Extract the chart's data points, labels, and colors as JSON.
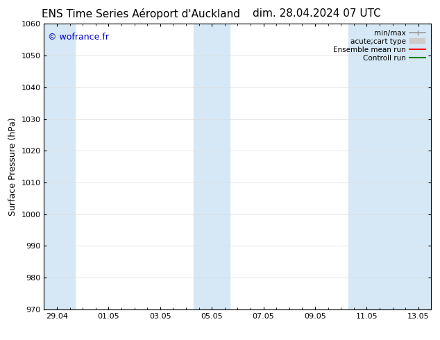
{
  "title_left": "ENS Time Series Aéroport d'Auckland",
  "title_right": "dim. 28.04.2024 07 UTC",
  "ylabel": "Surface Pressure (hPa)",
  "ylim": [
    970,
    1060
  ],
  "yticks": [
    970,
    980,
    990,
    1000,
    1010,
    1020,
    1030,
    1040,
    1050,
    1060
  ],
  "xtick_labels": [
    "29.04",
    "01.05",
    "03.05",
    "05.05",
    "07.05",
    "09.05",
    "11.05",
    "13.05"
  ],
  "xtick_positions": [
    0,
    2,
    4,
    6,
    8,
    10,
    12,
    14
  ],
  "xmin": -0.5,
  "xmax": 14.5,
  "shaded_bands": [
    {
      "x_start": -0.5,
      "x_end": 0.7
    },
    {
      "x_start": 5.3,
      "x_end": 6.7
    },
    {
      "x_start": 11.3,
      "x_end": 14.5
    }
  ],
  "shade_color": "#d6e8f5",
  "watermark_text": "© wofrance.fr",
  "watermark_color": "#0000cc",
  "watermark_fontsize": 9,
  "background_color": "#ffffff",
  "legend_items": [
    {
      "label": "min/max",
      "color": "#999999",
      "lw": 1.2
    },
    {
      "label": "acute;cart type",
      "color": "#cccccc",
      "lw": 6
    },
    {
      "label": "Ensemble mean run",
      "color": "#ff0000",
      "lw": 1.5
    },
    {
      "label": "Controll run",
      "color": "#008000",
      "lw": 1.5
    }
  ],
  "title_fontsize": 11,
  "axis_fontsize": 9,
  "tick_fontsize": 8,
  "legend_fontsize": 7.5
}
